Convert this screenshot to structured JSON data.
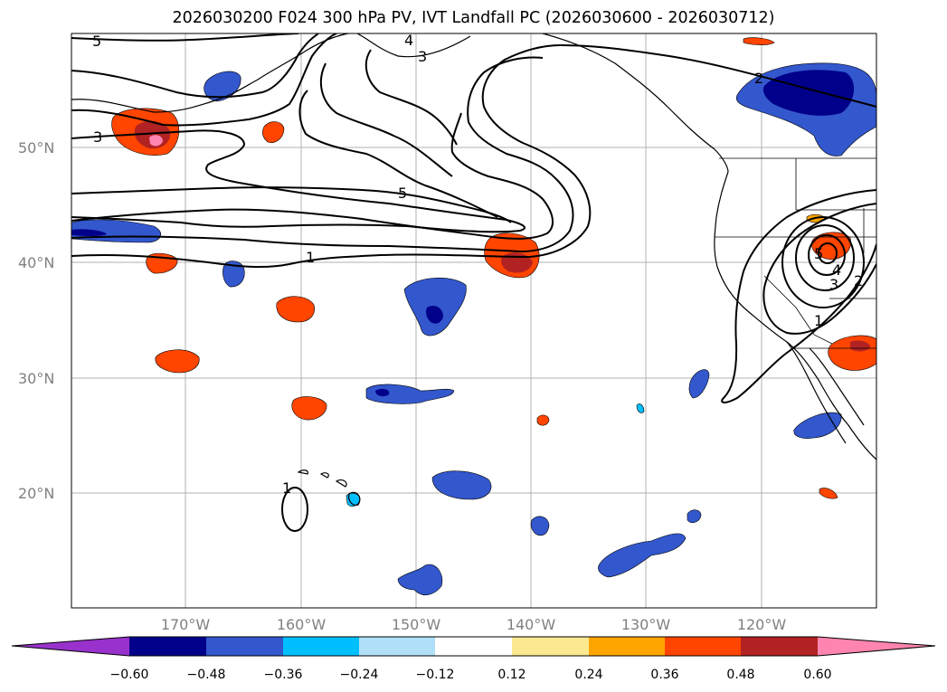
{
  "title": "2026030200 F024 300 hPa PV, IVT Landfall PC (2026030600 - 2026030712)",
  "lat_labels": [
    "50°N",
    "40°N",
    "30°N",
    "20°N"
  ],
  "lon_labels": [
    "170°W",
    "160°W",
    "150°W",
    "140°W",
    "130°W",
    "120°W"
  ],
  "colorbar": {
    "ticks": [
      "−0.60",
      "−0.48",
      "−0.36",
      "−0.24",
      "−0.12",
      "0.12",
      "0.24",
      "0.36",
      "0.48",
      "0.60"
    ],
    "colors": [
      "#9932cc",
      "#00008b",
      "#3357cc",
      "#00bfff",
      "#b0e0f8",
      "#ffffff",
      "#fbe890",
      "#ffa500",
      "#ff4500",
      "#b22222",
      "#ff85b0"
    ]
  },
  "contour_labels": [
    "5",
    "4",
    "3",
    "3",
    "5",
    "1",
    "2",
    "1",
    "1",
    "2",
    "3",
    "4",
    "5"
  ]
}
